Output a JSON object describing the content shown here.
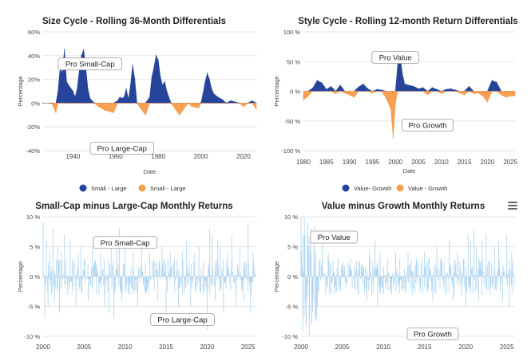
{
  "colors": {
    "blue": "#26449a",
    "orange": "#f7a052",
    "light_blue": "#a9d2f1",
    "annotation_border": "#999999",
    "grid": "#e6e6e6",
    "axis_text": "#444444",
    "title_text": "#222222"
  },
  "toolbar": {
    "menu_icon": "hamburger-menu-icon"
  },
  "chart_data": [
    {
      "type": "area",
      "title": "Size Cycle - Rolling 36-Month Differentials",
      "xlabel": "Date",
      "ylabel": "Percentage",
      "xlim": [
        1926,
        2026
      ],
      "ylim": [
        -40,
        60
      ],
      "yticks": [
        -40,
        -20,
        0,
        20,
        40,
        60
      ],
      "ytick_labels": [
        "-40%",
        "-20%",
        "0%",
        "20%",
        "40%",
        "60%"
      ],
      "xticks": [
        1940,
        1960,
        1980,
        2000,
        2020
      ],
      "xtick_labels": [
        "1940",
        "1960",
        "1980",
        "2000",
        "2020"
      ],
      "grid": true,
      "legend": {
        "placement": "bottom",
        "entries": [
          "Small - Large",
          "Small - Large"
        ]
      },
      "series": [
        {
          "name": "Small - Large",
          "color": "#26449a",
          "x": [
            1926,
            1929,
            1930,
            1932,
            1933,
            1934,
            1935,
            1936,
            1937,
            1938,
            1940,
            1941,
            1942,
            1943,
            1944,
            1945,
            1946,
            1947,
            1948,
            1950,
            1952,
            1955,
            1959,
            1961,
            1962,
            1963,
            1964,
            1965,
            1966,
            1967,
            1968,
            1969,
            1970,
            1972,
            1974,
            1976,
            1977,
            1978,
            1979,
            1980,
            1981,
            1982,
            1983,
            1984,
            1986,
            1988,
            1990,
            1992,
            1994,
            1996,
            1999,
            2000,
            2001,
            2002,
            2003,
            2004,
            2005,
            2006,
            2008,
            2010,
            2012,
            2014,
            2016,
            2018,
            2020,
            2022,
            2024,
            2026
          ],
          "values": [
            0,
            0,
            0,
            -8,
            10,
            30,
            25,
            45,
            18,
            15,
            10,
            5,
            12,
            28,
            40,
            45,
            30,
            12,
            4,
            0,
            -3,
            -6,
            -8,
            2,
            5,
            4,
            5,
            12,
            3,
            15,
            32,
            20,
            0,
            -5,
            -10,
            5,
            22,
            30,
            40,
            36,
            22,
            15,
            18,
            10,
            0,
            -5,
            -10,
            -5,
            0,
            -3,
            -4,
            0,
            8,
            18,
            25,
            20,
            12,
            8,
            5,
            3,
            0,
            2,
            1,
            0,
            -3,
            0,
            2,
            -5
          ]
        }
      ],
      "annotations": [
        {
          "text": "Pro Small-Cap",
          "x": 1948,
          "y": 33
        },
        {
          "text": "Pro Large-Cap",
          "x": 1963,
          "y": -38
        }
      ]
    },
    {
      "type": "area",
      "title": "Style Cycle - Rolling 12-month Return Differentials",
      "xlabel": "Date",
      "ylabel": "Percentage",
      "xlim": [
        1980,
        2026
      ],
      "ylim": [
        -100,
        100
      ],
      "yticks": [
        -100,
        -50,
        0,
        50,
        100
      ],
      "ytick_labels": [
        "-100 %",
        "-50 %",
        "0 %",
        "50 %",
        "100 %"
      ],
      "xticks": [
        1980,
        1985,
        1990,
        1995,
        2000,
        2005,
        2010,
        2015,
        2020,
        2025
      ],
      "xtick_labels": [
        "1980",
        "1985",
        "1990",
        "1995",
        "2000",
        "2005",
        "2010",
        "2015",
        "2020",
        "2025"
      ],
      "grid": true,
      "legend": {
        "placement": "bottom",
        "entries": [
          "Value- Growth",
          "Value - Growth"
        ]
      },
      "series": [
        {
          "name": "Value- Growth",
          "color": "#26449a",
          "x": [
            1980,
            1981,
            1982,
            1983,
            1984,
            1985,
            1986,
            1987,
            1988,
            1989,
            1990,
            1991,
            1992,
            1993,
            1994,
            1995,
            1996,
            1997,
            1998,
            1999,
            1999.5,
            2000,
            2000.5,
            2001,
            2001.5,
            2002,
            2003,
            2004,
            2005,
            2006,
            2007,
            2008,
            2009,
            2010,
            2011,
            2012,
            2013,
            2014,
            2015,
            2016,
            2017,
            2018,
            2019,
            2020,
            2021,
            2022,
            2023,
            2024,
            2025,
            2026
          ],
          "values": [
            -15,
            -8,
            5,
            18,
            14,
            3,
            8,
            -4,
            10,
            -3,
            -6,
            -10,
            7,
            12,
            4,
            -3,
            3,
            2,
            -12,
            -30,
            -78,
            -20,
            45,
            60,
            30,
            12,
            10,
            8,
            4,
            6,
            -6,
            6,
            3,
            -4,
            3,
            4,
            2,
            -3,
            -6,
            8,
            -4,
            -3,
            -8,
            -18,
            18,
            15,
            -6,
            -10,
            -8,
            -8
          ]
        }
      ],
      "annotations": [
        {
          "text": "Pro Value",
          "x": 2000,
          "y": 57
        },
        {
          "text": "Pro Growth",
          "x": 2007,
          "y": -57
        }
      ]
    },
    {
      "type": "bar",
      "title": "Small-Cap minus Large-Cap Monthly Returns",
      "xlabel": "",
      "ylabel": "Percentage",
      "xlim": [
        2000,
        2026
      ],
      "ylim": [
        -10,
        10
      ],
      "yticks": [
        -10,
        -5,
        0,
        5,
        10
      ],
      "ytick_labels": [
        "-10 %",
        "-5 %",
        "0 %",
        "5 %",
        "10 %"
      ],
      "xticks": [
        2000,
        2005,
        2010,
        2015,
        2020,
        2025
      ],
      "xtick_labels": [
        "2000",
        "2005",
        "2010",
        "2015",
        "2020",
        "2025"
      ],
      "grid": true,
      "series": [
        {
          "name": "Small - Large",
          "color": "#a9d2f1",
          "x": [
            2000.0,
            2000.2,
            2000.4,
            2000.6,
            2000.8,
            2001.0,
            2001.2,
            2001.4,
            2001.6,
            2001.8,
            2002.0,
            2002.3,
            2002.6,
            2003.0,
            2003.3,
            2003.6,
            2004.0,
            2004.3,
            2004.6,
            2005.0,
            2005.5,
            2006.0,
            2006.5,
            2007.0,
            2007.5,
            2008.0,
            2008.3,
            2008.6,
            2009.0,
            2009.3,
            2009.6,
            2010.0,
            2010.5,
            2011.0,
            2011.5,
            2012.0,
            2012.5,
            2013.0,
            2013.5,
            2014.0,
            2014.5,
            2015.0,
            2015.5,
            2016.0,
            2016.5,
            2017.0,
            2017.5,
            2018.0,
            2018.5,
            2019.0,
            2019.5,
            2020.0,
            2020.3,
            2020.6,
            2021.0,
            2021.3,
            2021.6,
            2022.0,
            2022.5,
            2023.0,
            2023.5,
            2024.0,
            2024.5,
            2025.0,
            2025.3,
            2025.6
          ],
          "values": [
            9,
            -7,
            6,
            -5,
            4,
            -3,
            8,
            -4,
            3,
            5,
            -6,
            4,
            7,
            -3,
            6,
            3,
            -5,
            4,
            5,
            3,
            -4,
            5,
            -3,
            4,
            -5,
            -6,
            5,
            -7,
            6,
            8,
            -4,
            5,
            -3,
            4,
            -5,
            6,
            -3,
            4,
            3,
            -4,
            5,
            -6,
            4,
            3,
            -5,
            4,
            6,
            -5,
            4,
            5,
            -3,
            -9,
            8,
            7,
            -4,
            6,
            5,
            -6,
            4,
            7,
            -5,
            5,
            -4,
            9,
            -6,
            4
          ]
        }
      ],
      "annotations": [
        {
          "text": "Pro Small-Cap",
          "x": 2010,
          "y": 5.7
        },
        {
          "text": "Pro Large-Cap",
          "x": 2017,
          "y": -7.2
        }
      ]
    },
    {
      "type": "bar",
      "title": "Value minus Growth Monthly Returns",
      "xlabel": "",
      "ylabel": "Percentage",
      "xlim": [
        2000,
        2026
      ],
      "ylim": [
        -10,
        10
      ],
      "yticks": [
        -10,
        -5,
        0,
        5,
        10
      ],
      "ytick_labels": [
        "-10 %",
        "-5 %",
        "0 %",
        "5 %",
        "10 %"
      ],
      "xticks": [
        2000,
        2005,
        2010,
        2015,
        2020,
        2025
      ],
      "xtick_labels": [
        "2000",
        "2005",
        "2010",
        "2015",
        "2020",
        "2025"
      ],
      "grid": true,
      "series": [
        {
          "name": "Value - Growth",
          "color": "#a9d2f1",
          "x": [
            2000.0,
            2000.2,
            2000.4,
            2000.6,
            2000.8,
            2001.0,
            2001.2,
            2001.4,
            2001.6,
            2001.8,
            2002.0,
            2002.3,
            2002.6,
            2003.0,
            2003.3,
            2003.6,
            2004.0,
            2004.5,
            2005.0,
            2005.5,
            2006.0,
            2006.5,
            2007.0,
            2007.5,
            2008.0,
            2008.3,
            2008.6,
            2009.0,
            2009.3,
            2009.6,
            2010.0,
            2010.5,
            2011.0,
            2011.5,
            2012.0,
            2012.5,
            2013.0,
            2013.5,
            2014.0,
            2014.5,
            2015.0,
            2015.5,
            2016.0,
            2016.5,
            2017.0,
            2017.5,
            2018.0,
            2018.5,
            2019.0,
            2019.5,
            2020.0,
            2020.3,
            2020.6,
            2021.0,
            2021.3,
            2021.6,
            2022.0,
            2022.5,
            2023.0,
            2023.5,
            2024.0,
            2024.5,
            2025.0,
            2025.3,
            2025.6
          ],
          "values": [
            10,
            -9,
            10,
            -8,
            9,
            -10,
            8,
            -6,
            5,
            4,
            -5,
            3,
            6,
            -3,
            4,
            2,
            -2,
            3,
            2,
            -2,
            3,
            -2,
            -3,
            2,
            -4,
            4,
            -3,
            6,
            -5,
            4,
            -3,
            3,
            -3,
            4,
            3,
            -2,
            4,
            -3,
            3,
            -2,
            4,
            3,
            -4,
            5,
            3,
            -3,
            6,
            -4,
            4,
            -3,
            -5,
            7,
            6,
            8,
            5,
            -4,
            6,
            7,
            -3,
            5,
            6,
            -4,
            7,
            -5,
            4
          ]
        }
      ],
      "annotations": [
        {
          "text": "Pro Value",
          "x": 2004,
          "y": 6.6
        },
        {
          "text": "Pro Growth",
          "x": 2016,
          "y": -9.6
        }
      ]
    }
  ]
}
